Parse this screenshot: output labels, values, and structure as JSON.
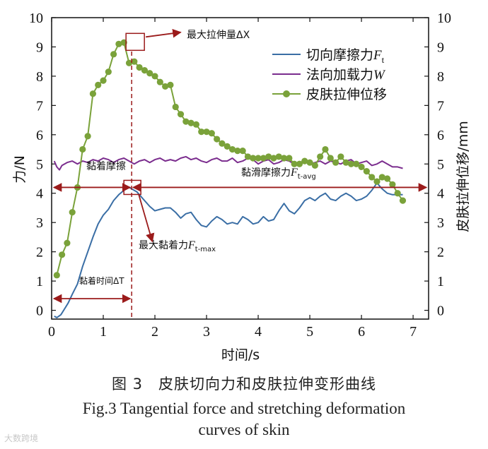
{
  "chart_data": {
    "type": "line",
    "title": "",
    "xlabel": "时间/s",
    "ylabel_left": "力/N",
    "ylabel_right": "皮肤拉伸位移/mm",
    "xlim": [
      0,
      7.3
    ],
    "ylim": [
      -0.3,
      10
    ],
    "x_ticks": [
      "0",
      "1",
      "2",
      "3",
      "4",
      "5",
      "6",
      "7"
    ],
    "y_ticks": [
      "0",
      "1",
      "2",
      "3",
      "4",
      "5",
      "6",
      "7",
      "8",
      "9",
      "10"
    ],
    "y_ticks_right": [
      "0",
      "1",
      "2",
      "3",
      "4",
      "5",
      "6",
      "7",
      "8",
      "9",
      "10"
    ],
    "series": [
      {
        "name": "切向摩擦力",
        "name_sub": "t",
        "name_var": "F",
        "color": "#3a6ea5",
        "x": [
          0.05,
          0.1,
          0.18,
          0.25,
          0.32,
          0.4,
          0.5,
          0.6,
          0.7,
          0.8,
          0.9,
          1.0,
          1.1,
          1.2,
          1.3,
          1.4,
          1.5,
          1.55,
          1.6,
          1.65,
          1.7,
          1.8,
          1.9,
          2.0,
          2.1,
          2.2,
          2.3,
          2.4,
          2.5,
          2.6,
          2.7,
          2.8,
          2.9,
          3.0,
          3.1,
          3.2,
          3.3,
          3.4,
          3.5,
          3.6,
          3.7,
          3.8,
          3.9,
          4.0,
          4.1,
          4.2,
          4.3,
          4.4,
          4.5,
          4.6,
          4.7,
          4.8,
          4.9,
          5.0,
          5.1,
          5.2,
          5.3,
          5.4,
          5.5,
          5.6,
          5.7,
          5.8,
          5.9,
          6.0,
          6.1,
          6.2,
          6.3,
          6.4,
          6.5,
          6.6,
          6.7,
          6.8
        ],
        "values": [
          -0.2,
          -0.25,
          -0.15,
          0.05,
          0.25,
          0.55,
          0.9,
          1.5,
          2.0,
          2.5,
          2.95,
          3.25,
          3.45,
          3.75,
          3.95,
          4.1,
          4.2,
          4.15,
          4.1,
          4.05,
          3.95,
          3.75,
          3.55,
          3.4,
          3.45,
          3.5,
          3.5,
          3.35,
          3.15,
          3.3,
          3.35,
          3.1,
          2.9,
          2.85,
          3.05,
          3.2,
          3.1,
          2.95,
          3.0,
          2.95,
          3.2,
          3.1,
          2.95,
          3.0,
          3.2,
          3.05,
          3.1,
          3.4,
          3.65,
          3.4,
          3.3,
          3.5,
          3.75,
          3.85,
          3.75,
          3.9,
          4.0,
          3.8,
          3.75,
          3.9,
          4.0,
          3.9,
          3.75,
          3.8,
          3.9,
          4.1,
          4.35,
          4.15,
          4.0,
          3.95,
          3.95,
          3.95
        ]
      },
      {
        "name": "法向加载力",
        "name_var": "W",
        "color": "#7b2d8e",
        "x": [
          0.05,
          0.1,
          0.15,
          0.2,
          0.3,
          0.4,
          0.5,
          0.6,
          0.7,
          0.8,
          0.9,
          1.0,
          1.1,
          1.2,
          1.3,
          1.4,
          1.5,
          1.6,
          1.7,
          1.8,
          1.9,
          2.0,
          2.1,
          2.2,
          2.3,
          2.4,
          2.5,
          2.6,
          2.7,
          2.8,
          2.9,
          3.0,
          3.1,
          3.2,
          3.3,
          3.4,
          3.5,
          3.6,
          3.7,
          3.8,
          3.9,
          4.0,
          4.1,
          4.2,
          4.3,
          4.4,
          4.5,
          4.6,
          4.7,
          4.8,
          4.9,
          5.0,
          5.1,
          5.2,
          5.3,
          5.4,
          5.5,
          5.6,
          5.7,
          5.8,
          5.9,
          6.0,
          6.1,
          6.2,
          6.3,
          6.4,
          6.5,
          6.6,
          6.7,
          6.8
        ],
        "values": [
          5.1,
          4.9,
          4.8,
          4.95,
          5.05,
          5.1,
          5.0,
          5.1,
          5.05,
          5.15,
          5.1,
          5.2,
          5.15,
          5.05,
          5.15,
          5.2,
          5.1,
          5.0,
          5.1,
          5.15,
          5.05,
          5.15,
          5.2,
          5.1,
          5.15,
          5.1,
          5.2,
          5.25,
          5.15,
          5.2,
          5.1,
          5.05,
          5.15,
          5.2,
          5.1,
          5.1,
          5.2,
          5.05,
          5.1,
          5.2,
          5.15,
          5.0,
          5.1,
          5.15,
          5.0,
          5.05,
          5.15,
          5.1,
          5.0,
          5.05,
          5.1,
          5.0,
          5.05,
          5.1,
          5.0,
          5.1,
          5.05,
          5.0,
          5.1,
          5.15,
          5.0,
          5.05,
          5.1,
          4.95,
          5.0,
          5.1,
          5.0,
          4.9,
          4.9,
          4.85
        ]
      },
      {
        "name": "皮肤拉伸位移",
        "color": "#7aa23a",
        "markers": true,
        "x": [
          0.1,
          0.2,
          0.3,
          0.4,
          0.5,
          0.6,
          0.7,
          0.8,
          0.9,
          1.0,
          1.1,
          1.2,
          1.3,
          1.4,
          1.5,
          1.6,
          1.7,
          1.8,
          1.9,
          2.0,
          2.1,
          2.2,
          2.3,
          2.4,
          2.5,
          2.6,
          2.7,
          2.8,
          2.9,
          3.0,
          3.1,
          3.2,
          3.3,
          3.4,
          3.5,
          3.6,
          3.7,
          3.8,
          3.9,
          4.0,
          4.1,
          4.2,
          4.3,
          4.4,
          4.5,
          4.6,
          4.7,
          4.8,
          4.9,
          5.0,
          5.1,
          5.2,
          5.3,
          5.4,
          5.5,
          5.6,
          5.7,
          5.8,
          5.9,
          6.0,
          6.1,
          6.2,
          6.3,
          6.4,
          6.5,
          6.6,
          6.7,
          6.8
        ],
        "values": [
          1.2,
          1.9,
          2.3,
          3.35,
          4.2,
          5.5,
          5.95,
          7.4,
          7.7,
          7.85,
          8.15,
          8.75,
          9.1,
          9.15,
          8.45,
          8.5,
          8.3,
          8.2,
          8.1,
          8.0,
          7.8,
          7.65,
          7.7,
          6.95,
          6.7,
          6.45,
          6.4,
          6.35,
          6.1,
          6.1,
          6.05,
          5.85,
          5.7,
          5.6,
          5.5,
          5.45,
          5.45,
          5.25,
          5.2,
          5.2,
          5.2,
          5.25,
          5.2,
          5.25,
          5.2,
          5.2,
          5.0,
          5.0,
          5.1,
          5.05,
          4.95,
          5.25,
          5.5,
          5.2,
          5.05,
          5.25,
          5.05,
          5.0,
          5.0,
          4.9,
          4.75,
          4.55,
          4.4,
          4.55,
          4.5,
          4.3,
          4.0,
          3.75
        ]
      }
    ],
    "annotations": {
      "max_stretch": "最大拉伸量ΔX",
      "stick_friction": "黏着摩擦",
      "slip_friction": "黏滑摩擦力",
      "slip_friction_var": "F",
      "slip_friction_sub": "t-avg",
      "max_stick_force": "最大黏着力",
      "max_stick_force_var": "F",
      "max_stick_force_sub": "t-max",
      "stick_time": "黏着时间ΔT",
      "stick_time_value": 1.55,
      "stick_force_level": 4.2
    }
  },
  "caption": {
    "zh": "图 3　皮肤切向力和皮肤拉伸变形曲线",
    "en_line1": "Fig.3 Tangential force and stretching deformation",
    "en_line2": "curves of skin"
  },
  "watermark": "大数跨境"
}
